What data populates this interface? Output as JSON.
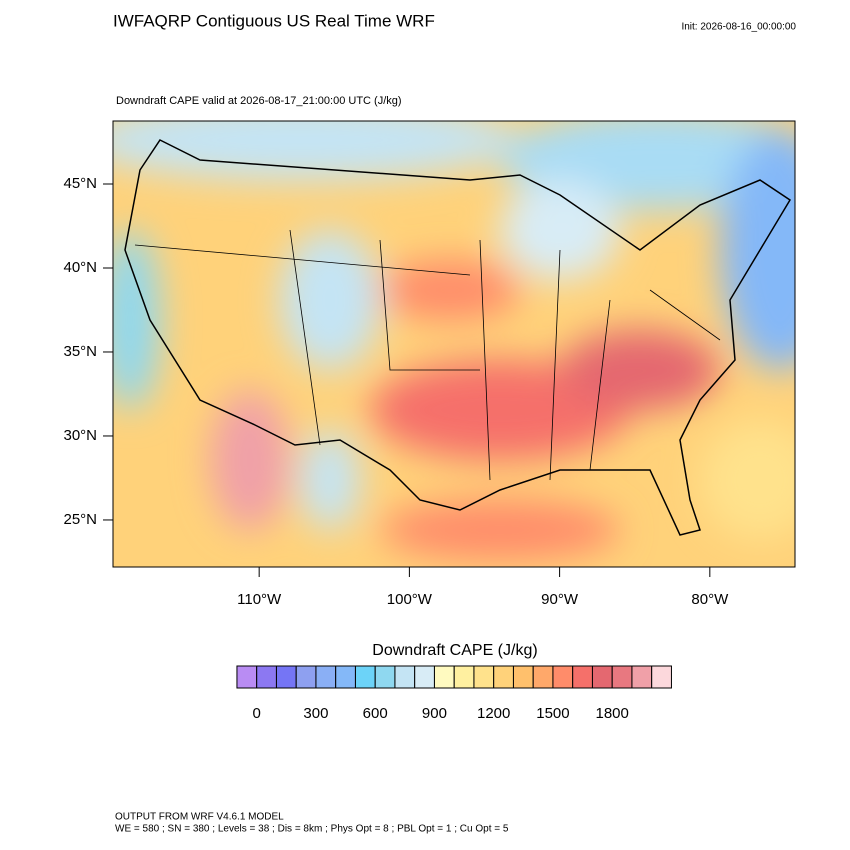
{
  "header": {
    "title": "IWFAQRP Contiguous US Real Time WRF",
    "init": "Init: 2026-08-16_00:00:00"
  },
  "map": {
    "subtitle": "Downdraft CAPE valid at 2026-08-17_21:00:00 UTC   (J/kg)",
    "xlim": [
      -119.73,
      -74.33
    ],
    "ylim": [
      22.2,
      48.75
    ],
    "xticks": [
      {
        "value": -110,
        "label": "110°W"
      },
      {
        "value": -100,
        "label": "100°W"
      },
      {
        "value": -90,
        "label": "90°W"
      },
      {
        "value": -80,
        "label": "80°W"
      }
    ],
    "yticks": [
      {
        "value": 45,
        "label": "45°N"
      },
      {
        "value": 40,
        "label": "40°N"
      },
      {
        "value": 35,
        "label": "35°N"
      },
      {
        "value": 30,
        "label": "30°N"
      },
      {
        "value": 25,
        "label": "25°N"
      }
    ]
  },
  "colorbar": {
    "label": "Downdraft CAPE  (J/kg)",
    "levels": [
      0,
      100,
      200,
      300,
      400,
      500,
      600,
      700,
      800,
      900,
      1000,
      1100,
      1200,
      1300,
      1400,
      1500,
      1600,
      1700,
      1800,
      1900,
      2000
    ],
    "ticks": [
      0,
      300,
      600,
      900,
      1200,
      1500,
      1800
    ],
    "colors": [
      "#b98cf3",
      "#8c78f2",
      "#7575f5",
      "#8ea0f0",
      "#8aaff5",
      "#84b8f8",
      "#6cd3f8",
      "#8fd8f0",
      "#c4e4f4",
      "#d8ecf6",
      "#fffac0",
      "#fff0a0",
      "#ffe28c",
      "#ffd27a",
      "#ffc06c",
      "#ffa86a",
      "#ff8c6a",
      "#f5706a",
      "#e46870",
      "#e87880",
      "#f0a0a8",
      "#fcd8dc"
    ]
  },
  "footer": {
    "line1": "OUTPUT FROM WRF V4.6.1 MODEL",
    "line2": "WE = 580 ; SN = 380 ; Levels = 38 ; Dis = 8km ; Phys Opt = 8 ; PBL Opt = 1 ; Cu Opt = 5"
  }
}
